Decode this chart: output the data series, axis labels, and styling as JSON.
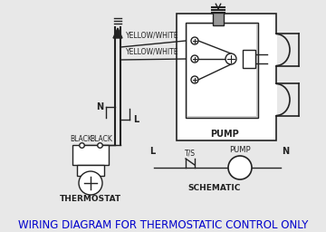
{
  "title": "WIRING DIAGRAM FOR THERMOSTATIC CONTROL ONLY",
  "title_color": "#0000cc",
  "title_fontsize": 8.5,
  "bg_color": "#e8e8e8",
  "line_color": "#222222",
  "label_yellow_white_1": "YELLOW/WHITE",
  "label_yellow_white_2": "YELLOW/WHITE",
  "label_n": "N",
  "label_l": "L",
  "label_black1": "BLACK",
  "label_black2": "BLACK",
  "label_pump": "PUMP",
  "label_thermostat": "THERMOSTAT",
  "label_schematic": "SCHEMATIC",
  "label_ts": "T/S",
  "label_pump2": "PUMP",
  "label_L2": "L",
  "label_N2": "N"
}
